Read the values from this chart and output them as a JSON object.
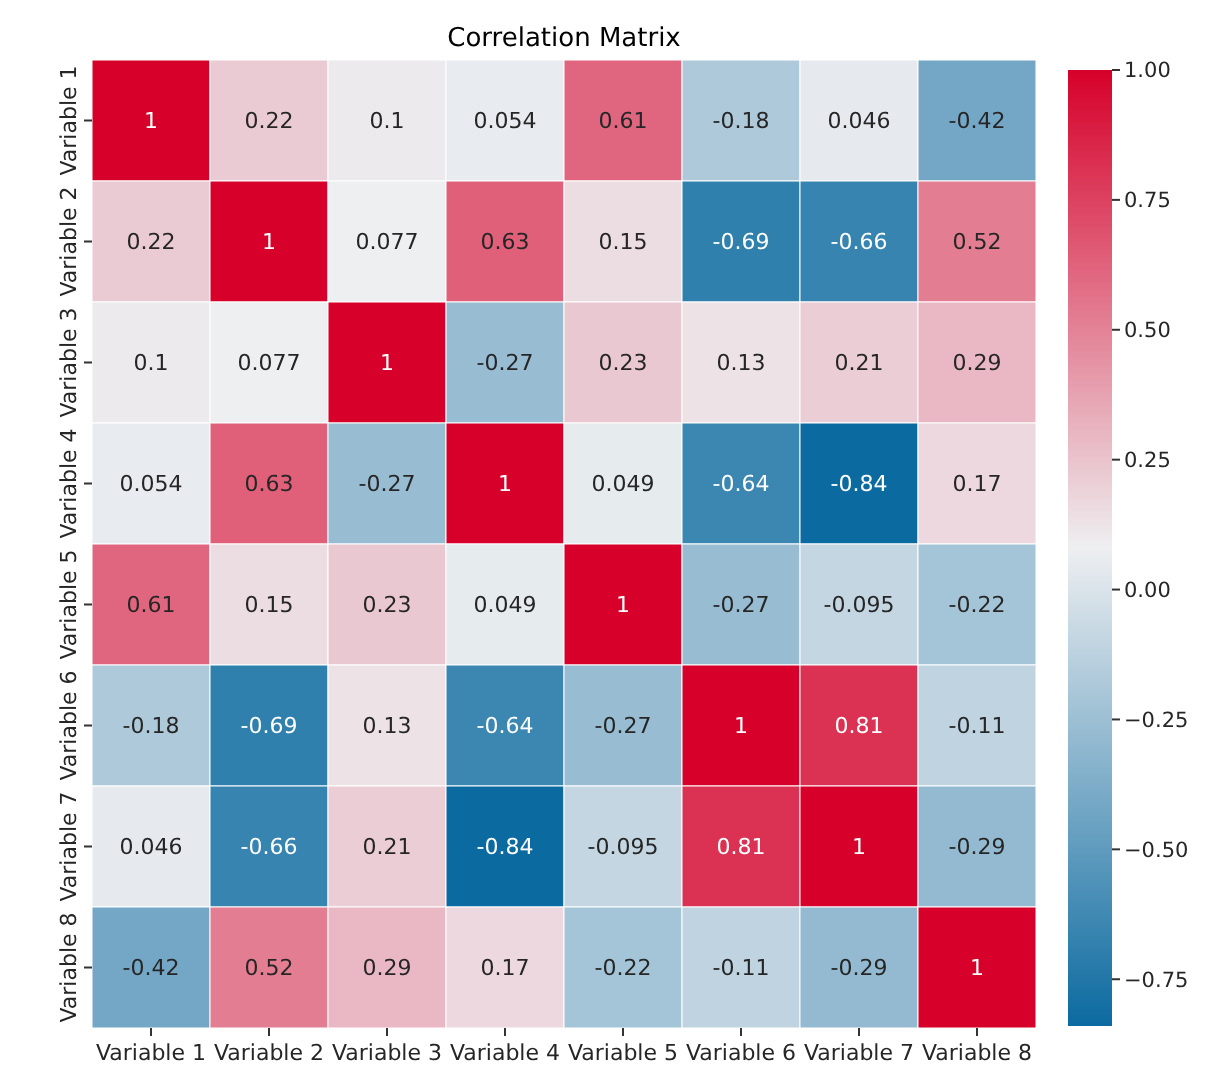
{
  "chart_data": {
    "type": "heatmap",
    "title": "Correlation Matrix",
    "categories": [
      "Variable 1",
      "Variable 2",
      "Variable 3",
      "Variable 4",
      "Variable 5",
      "Variable 6",
      "Variable 7",
      "Variable 8"
    ],
    "y_categories": [
      "Variable 1",
      "Variable 2",
      "Variable 3",
      "Variable 4",
      "Variable 5",
      "Variable 6",
      "Variable 7",
      "Variable 8"
    ],
    "cells": [
      [
        1,
        0.22,
        0.1,
        0.054,
        0.61,
        -0.18,
        0.046,
        -0.42
      ],
      [
        0.22,
        1,
        0.077,
        0.63,
        0.15,
        -0.69,
        -0.66,
        0.52
      ],
      [
        0.1,
        0.077,
        1,
        -0.27,
        0.23,
        0.13,
        0.21,
        0.29
      ],
      [
        0.054,
        0.63,
        -0.27,
        1,
        0.049,
        -0.64,
        -0.84,
        0.17
      ],
      [
        0.61,
        0.15,
        0.23,
        0.049,
        1,
        -0.27,
        -0.095,
        -0.22
      ],
      [
        -0.18,
        -0.69,
        0.13,
        -0.64,
        -0.27,
        1,
        0.81,
        -0.11
      ],
      [
        0.046,
        -0.66,
        0.21,
        -0.84,
        -0.095,
        0.81,
        1,
        -0.29
      ],
      [
        -0.42,
        0.52,
        0.29,
        0.17,
        -0.22,
        -0.11,
        -0.29,
        1
      ]
    ],
    "data_labels": true,
    "clim": [
      -0.84,
      1
    ],
    "cticks": [
      {
        "value": 1,
        "label": "1.00"
      },
      {
        "value": 0.75,
        "label": "0.75"
      },
      {
        "value": 0.5,
        "label": "0.50"
      },
      {
        "value": 0.25,
        "label": "0.25"
      },
      {
        "value": 0,
        "label": "0.00"
      },
      {
        "value": -0.25,
        "label": "−0.25"
      },
      {
        "value": -0.5,
        "label": "−0.50"
      },
      {
        "value": -0.75,
        "label": "−0.75"
      }
    ]
  }
}
